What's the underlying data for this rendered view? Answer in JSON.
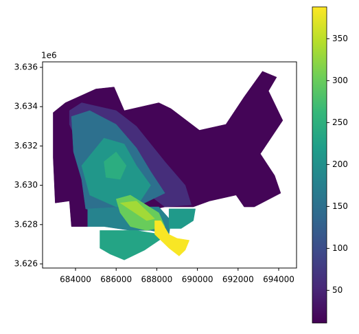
{
  "chart_data": {
    "type": "choropleth",
    "offset_text": "1e6",
    "xlim": [
      682378,
      694878
    ],
    "ylim": [
      3.62579,
      3.63628
    ],
    "xticks": [
      684000,
      686000,
      688000,
      690000,
      692000,
      694000
    ],
    "yticks": [
      3.626,
      3.628,
      {
        "value": 3.63,
        "label": "3.630"
      },
      3.632,
      3.634,
      3.636
    ],
    "colorbar": {
      "cmap": "viridis",
      "clim": [
        11,
        388
      ],
      "ticks": [
        50,
        100,
        150,
        200,
        250,
        300,
        350
      ]
    },
    "regions": [
      {
        "value": 15,
        "polygon": [
          [
            682900,
            3.6337
          ],
          [
            683500,
            3.6342
          ],
          [
            685000,
            3.6349
          ],
          [
            685900,
            3.635
          ],
          [
            686400,
            3.6338
          ],
          [
            688100,
            3.6342
          ],
          [
            688700,
            3.6339
          ],
          [
            690100,
            3.6328
          ],
          [
            691400,
            3.6331
          ],
          [
            692300,
            3.6345
          ],
          [
            693200,
            3.6358
          ],
          [
            693900,
            3.6355
          ],
          [
            693500,
            3.6348
          ],
          [
            694200,
            3.6333
          ],
          [
            693100,
            3.6316
          ],
          [
            693800,
            3.6305
          ],
          [
            694100,
            3.6296
          ],
          [
            692800,
            3.6289
          ],
          [
            692300,
            3.6289
          ],
          [
            691900,
            3.6295
          ],
          [
            690600,
            3.6292
          ],
          [
            689800,
            3.6289
          ],
          [
            688400,
            3.6289
          ],
          [
            685400,
            3.6282
          ],
          [
            684600,
            3.6279
          ],
          [
            683800,
            3.6279
          ],
          [
            683700,
            3.6292
          ],
          [
            683000,
            3.6291
          ],
          [
            682900,
            3.6314
          ]
        ]
      },
      {
        "value": 60,
        "polygon": [
          [
            683700,
            3.6338
          ],
          [
            684300,
            3.6342
          ],
          [
            686000,
            3.6338
          ],
          [
            687000,
            3.633
          ],
          [
            688400,
            3.6312
          ],
          [
            689400,
            3.63
          ],
          [
            689700,
            3.629
          ],
          [
            688400,
            3.6289
          ],
          [
            687000,
            3.63
          ],
          [
            685400,
            3.6314
          ],
          [
            684000,
            3.6324
          ],
          [
            683700,
            3.6331
          ]
        ]
      },
      {
        "value": 150,
        "polygon": [
          [
            683800,
            3.6335
          ],
          [
            684700,
            3.6338
          ],
          [
            686000,
            3.6331
          ],
          [
            687000,
            3.6319
          ],
          [
            687700,
            3.6307
          ],
          [
            688400,
            3.6296
          ],
          [
            687000,
            3.6289
          ],
          [
            685400,
            3.6286
          ],
          [
            684500,
            3.6288
          ],
          [
            684300,
            3.6303
          ],
          [
            683900,
            3.6317
          ]
        ]
      },
      {
        "value": 210,
        "polygon": [
          [
            684300,
            3.631
          ],
          [
            685400,
            3.6324
          ],
          [
            686400,
            3.6321
          ],
          [
            687000,
            3.631
          ],
          [
            687700,
            3.63
          ],
          [
            687000,
            3.6289
          ],
          [
            686000,
            3.6289
          ],
          [
            684700,
            3.6295
          ]
        ]
      },
      {
        "value": 245,
        "polygon": [
          [
            685400,
            3.6312
          ],
          [
            686000,
            3.6317
          ],
          [
            686500,
            3.631
          ],
          [
            686200,
            3.6303
          ],
          [
            685500,
            3.6304
          ]
        ]
      },
      {
        "value": 180,
        "polygon": [
          [
            684600,
            3.6288
          ],
          [
            686400,
            3.6289
          ],
          [
            688100,
            3.6289
          ],
          [
            688700,
            3.6282
          ],
          [
            688600,
            3.6275
          ],
          [
            687700,
            3.6277
          ],
          [
            686700,
            3.6277
          ],
          [
            685400,
            3.6279
          ],
          [
            684600,
            3.6279
          ]
        ]
      },
      {
        "value": 230,
        "polygon": [
          [
            685200,
            3.6277
          ],
          [
            687000,
            3.6277
          ],
          [
            688200,
            3.6275
          ],
          [
            688400,
            3.6274
          ],
          [
            687400,
            3.6267
          ],
          [
            686400,
            3.6262
          ],
          [
            685700,
            3.6265
          ],
          [
            685200,
            3.6268
          ]
        ]
      },
      {
        "value": 215,
        "polygon": [
          [
            688600,
            3.6288
          ],
          [
            689900,
            3.6288
          ],
          [
            689800,
            3.6282
          ],
          [
            689200,
            3.6278
          ],
          [
            688600,
            3.6278
          ]
        ]
      },
      {
        "value": 300,
        "polygon": [
          [
            686000,
            3.6293
          ],
          [
            686700,
            3.6295
          ],
          [
            688100,
            3.6286
          ],
          [
            688400,
            3.6279
          ],
          [
            687500,
            3.6277
          ],
          [
            686700,
            3.6279
          ],
          [
            686200,
            3.6286
          ]
        ]
      },
      {
        "value": 335,
        "polygon": [
          [
            686200,
            3.6291
          ],
          [
            687000,
            3.6292
          ],
          [
            687900,
            3.6283
          ],
          [
            687500,
            3.6282
          ]
        ]
      },
      {
        "value": 385,
        "polygon": [
          [
            687900,
            3.6282
          ],
          [
            688200,
            3.6282
          ],
          [
            688600,
            3.6275
          ],
          [
            689000,
            3.6273
          ],
          [
            689600,
            3.6272
          ],
          [
            689400,
            3.6267
          ],
          [
            689100,
            3.6264
          ],
          [
            688600,
            3.6268
          ],
          [
            687900,
            3.6275
          ]
        ]
      }
    ]
  }
}
